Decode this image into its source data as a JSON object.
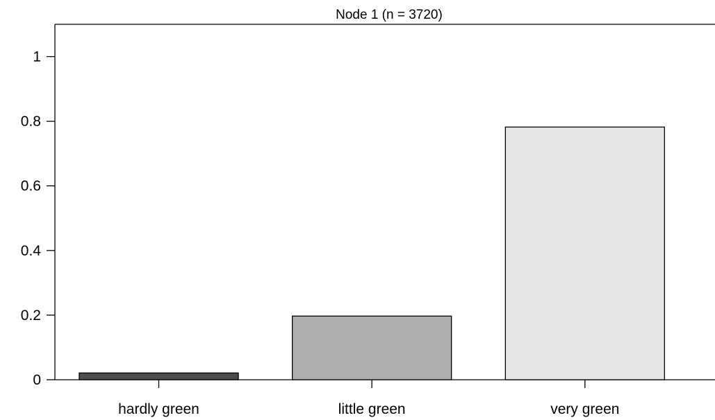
{
  "chart_data": {
    "type": "bar",
    "title": "Node 1 (n = 3720)",
    "categories": [
      "hardly green",
      "little green",
      "very green"
    ],
    "values": [
      0.021,
      0.197,
      0.782
    ],
    "colors": [
      "#4d4d4d",
      "#aeaeae",
      "#e6e6e6"
    ],
    "ylim": [
      0,
      1.1
    ],
    "yticks": [
      {
        "value": 0,
        "label": "0"
      },
      {
        "value": 0.2,
        "label": "0.2"
      },
      {
        "value": 0.4,
        "label": "0.4"
      },
      {
        "value": 0.6,
        "label": "0.6"
      },
      {
        "value": 0.8,
        "label": "0.8"
      },
      {
        "value": 1,
        "label": "1"
      }
    ],
    "grid": false,
    "legend": "none"
  }
}
